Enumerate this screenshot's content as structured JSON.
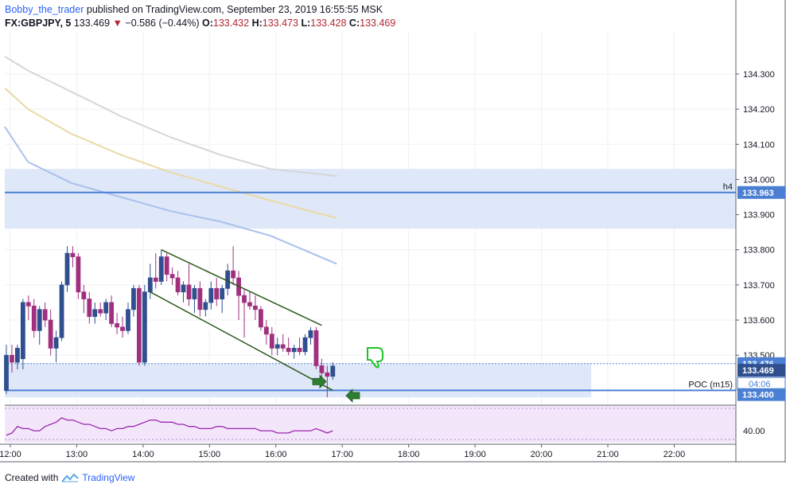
{
  "header": {
    "author": "Bobby_the_trader",
    "published": "published on TradingView.com, September 23, 2019 16:55:55 MSK",
    "symbol": "FX:GBPJPY, 5",
    "last": "133.469",
    "change": "−0.586 (−0.44%)",
    "o_label": "O:",
    "o_val": "133.432",
    "h_label": "H:",
    "h_val": "133.473",
    "l_label": "L:",
    "l_val": "133.428",
    "c_label": "C:",
    "c_val": "133.469"
  },
  "footer": {
    "created": "Created with",
    "brand": "TradingView"
  },
  "colors": {
    "bull": "#2f4f8f",
    "bear": "#a0307f",
    "zone": "#dbe6f7",
    "level": "#4a7fd4",
    "channel": "#2e5a1e",
    "arrow": "#2e7d32",
    "ma_gray": "#d6d6d6",
    "ma_yellow": "#ead9a4",
    "ma_blue": "#a9c1ec",
    "oscillator_bg": "#f3e6fa",
    "oscillator_line": "#9c27b0"
  },
  "chart_data": {
    "type": "candlestick",
    "symbol": "FX:GBPJPY",
    "timeframe": "5",
    "price_ticks": [
      "134.300",
      "134.200",
      "134.100",
      "134.000",
      "133.900",
      "133.800",
      "133.700",
      "133.600",
      "133.500"
    ],
    "time_ticks": [
      "12:00",
      "13:00",
      "14:00",
      "15:00",
      "16:00",
      "17:00",
      "18:00",
      "19:00",
      "20:00",
      "21:00",
      "22:00"
    ],
    "ylim": [
      133.36,
      134.42
    ],
    "candles": [
      {
        "t": "11:55",
        "o": 133.4,
        "h": 133.53,
        "l": 133.39,
        "c": 133.5
      },
      {
        "t": "12:00",
        "o": 133.5,
        "h": 133.53,
        "l": 133.45,
        "c": 133.48
      },
      {
        "t": "12:05",
        "o": 133.48,
        "h": 133.53,
        "l": 133.46,
        "c": 133.52
      },
      {
        "t": "12:10",
        "o": 133.49,
        "h": 133.66,
        "l": 133.46,
        "c": 133.65
      },
      {
        "t": "12:15",
        "o": 133.65,
        "h": 133.67,
        "l": 133.6,
        "c": 133.64
      },
      {
        "t": "12:20",
        "o": 133.64,
        "h": 133.66,
        "l": 133.55,
        "c": 133.57
      },
      {
        "t": "12:25",
        "o": 133.57,
        "h": 133.64,
        "l": 133.53,
        "c": 133.63
      },
      {
        "t": "12:30",
        "o": 133.63,
        "h": 133.65,
        "l": 133.58,
        "c": 133.6
      },
      {
        "t": "12:35",
        "o": 133.6,
        "h": 133.63,
        "l": 133.5,
        "c": 133.52
      },
      {
        "t": "12:40",
        "o": 133.52,
        "h": 133.57,
        "l": 133.48,
        "c": 133.55
      },
      {
        "t": "12:45",
        "o": 133.55,
        "h": 133.71,
        "l": 133.54,
        "c": 133.7
      },
      {
        "t": "12:50",
        "o": 133.7,
        "h": 133.81,
        "l": 133.68,
        "c": 133.79
      },
      {
        "t": "12:55",
        "o": 133.79,
        "h": 133.81,
        "l": 133.75,
        "c": 133.78
      },
      {
        "t": "13:00",
        "o": 133.78,
        "h": 133.79,
        "l": 133.66,
        "c": 133.68
      },
      {
        "t": "13:05",
        "o": 133.68,
        "h": 133.7,
        "l": 133.62,
        "c": 133.66
      },
      {
        "t": "13:10",
        "o": 133.66,
        "h": 133.68,
        "l": 133.59,
        "c": 133.61
      },
      {
        "t": "13:15",
        "o": 133.61,
        "h": 133.65,
        "l": 133.59,
        "c": 133.63
      },
      {
        "t": "13:20",
        "o": 133.63,
        "h": 133.65,
        "l": 133.61,
        "c": 133.62
      },
      {
        "t": "13:25",
        "o": 133.62,
        "h": 133.66,
        "l": 133.6,
        "c": 133.65
      },
      {
        "t": "13:30",
        "o": 133.65,
        "h": 133.67,
        "l": 133.58,
        "c": 133.59
      },
      {
        "t": "13:35",
        "o": 133.59,
        "h": 133.62,
        "l": 133.56,
        "c": 133.58
      },
      {
        "t": "13:40",
        "o": 133.58,
        "h": 133.61,
        "l": 133.55,
        "c": 133.57
      },
      {
        "t": "13:45",
        "o": 133.57,
        "h": 133.65,
        "l": 133.56,
        "c": 133.63
      },
      {
        "t": "13:50",
        "o": 133.63,
        "h": 133.7,
        "l": 133.61,
        "c": 133.69
      },
      {
        "t": "13:55",
        "o": 133.69,
        "h": 133.7,
        "l": 133.47,
        "c": 133.48
      },
      {
        "t": "14:00",
        "o": 133.48,
        "h": 133.7,
        "l": 133.47,
        "c": 133.68
      },
      {
        "t": "14:05",
        "o": 133.68,
        "h": 133.76,
        "l": 133.66,
        "c": 133.72
      },
      {
        "t": "14:10",
        "o": 133.72,
        "h": 133.79,
        "l": 133.69,
        "c": 133.71
      },
      {
        "t": "14:15",
        "o": 133.71,
        "h": 133.8,
        "l": 133.7,
        "c": 133.78
      },
      {
        "t": "14:20",
        "o": 133.78,
        "h": 133.79,
        "l": 133.71,
        "c": 133.73
      },
      {
        "t": "14:25",
        "o": 133.73,
        "h": 133.75,
        "l": 133.7,
        "c": 133.72
      },
      {
        "t": "14:30",
        "o": 133.72,
        "h": 133.74,
        "l": 133.67,
        "c": 133.68
      },
      {
        "t": "14:35",
        "o": 133.68,
        "h": 133.71,
        "l": 133.65,
        "c": 133.7
      },
      {
        "t": "14:40",
        "o": 133.7,
        "h": 133.76,
        "l": 133.64,
        "c": 133.66
      },
      {
        "t": "14:45",
        "o": 133.66,
        "h": 133.7,
        "l": 133.62,
        "c": 133.69
      },
      {
        "t": "14:50",
        "o": 133.69,
        "h": 133.71,
        "l": 133.61,
        "c": 133.63
      },
      {
        "t": "14:55",
        "o": 133.63,
        "h": 133.66,
        "l": 133.61,
        "c": 133.65
      },
      {
        "t": "15:00",
        "o": 133.65,
        "h": 133.71,
        "l": 133.63,
        "c": 133.69
      },
      {
        "t": "15:05",
        "o": 133.69,
        "h": 133.72,
        "l": 133.64,
        "c": 133.66
      },
      {
        "t": "15:10",
        "o": 133.66,
        "h": 133.7,
        "l": 133.62,
        "c": 133.69
      },
      {
        "t": "15:15",
        "o": 133.69,
        "h": 133.76,
        "l": 133.67,
        "c": 133.74
      },
      {
        "t": "15:20",
        "o": 133.74,
        "h": 133.81,
        "l": 133.7,
        "c": 133.72
      },
      {
        "t": "15:25",
        "o": 133.72,
        "h": 133.74,
        "l": 133.6,
        "c": 133.67
      },
      {
        "t": "15:30",
        "o": 133.67,
        "h": 133.69,
        "l": 133.55,
        "c": 133.65
      },
      {
        "t": "15:35",
        "o": 133.65,
        "h": 133.68,
        "l": 133.63,
        "c": 133.64
      },
      {
        "t": "15:40",
        "o": 133.64,
        "h": 133.67,
        "l": 133.6,
        "c": 133.63
      },
      {
        "t": "15:45",
        "o": 133.63,
        "h": 133.64,
        "l": 133.57,
        "c": 133.58
      },
      {
        "t": "15:50",
        "o": 133.58,
        "h": 133.6,
        "l": 133.53,
        "c": 133.56
      },
      {
        "t": "15:55",
        "o": 133.56,
        "h": 133.58,
        "l": 133.5,
        "c": 133.52
      },
      {
        "t": "16:00",
        "o": 133.52,
        "h": 133.55,
        "l": 133.5,
        "c": 133.53
      },
      {
        "t": "16:05",
        "o": 133.53,
        "h": 133.56,
        "l": 133.51,
        "c": 133.52
      },
      {
        "t": "16:10",
        "o": 133.52,
        "h": 133.55,
        "l": 133.5,
        "c": 133.51
      },
      {
        "t": "16:15",
        "o": 133.51,
        "h": 133.53,
        "l": 133.49,
        "c": 133.52
      },
      {
        "t": "16:20",
        "o": 133.52,
        "h": 133.55,
        "l": 133.5,
        "c": 133.51
      },
      {
        "t": "16:25",
        "o": 133.51,
        "h": 133.56,
        "l": 133.5,
        "c": 133.55
      },
      {
        "t": "16:30",
        "o": 133.55,
        "h": 133.58,
        "l": 133.53,
        "c": 133.57
      },
      {
        "t": "16:35",
        "o": 133.57,
        "h": 133.58,
        "l": 133.46,
        "c": 133.47
      },
      {
        "t": "16:40",
        "o": 133.47,
        "h": 133.49,
        "l": 133.43,
        "c": 133.45
      },
      {
        "t": "16:45",
        "o": 133.45,
        "h": 133.47,
        "l": 133.38,
        "c": 133.44
      },
      {
        "t": "16:50",
        "o": 133.44,
        "h": 133.48,
        "l": 133.43,
        "c": 133.469
      }
    ],
    "moving_averages": [
      {
        "color": "gray",
        "points": [
          [
            0,
            134.35
          ],
          [
            0.07,
            134.31
          ],
          [
            0.2,
            134.25
          ],
          [
            0.35,
            134.18
          ],
          [
            0.5,
            134.12
          ],
          [
            0.65,
            134.07
          ],
          [
            0.8,
            134.03
          ],
          [
            1,
            134.01
          ]
        ]
      },
      {
        "color": "yellow",
        "points": [
          [
            0,
            134.26
          ],
          [
            0.07,
            134.2
          ],
          [
            0.2,
            134.13
          ],
          [
            0.35,
            134.07
          ],
          [
            0.5,
            134.02
          ],
          [
            0.65,
            133.98
          ],
          [
            0.8,
            133.94
          ],
          [
            1,
            133.89
          ]
        ]
      },
      {
        "color": "blue",
        "points": [
          [
            0,
            134.15
          ],
          [
            0.07,
            134.05
          ],
          [
            0.2,
            133.99
          ],
          [
            0.35,
            133.95
          ],
          [
            0.5,
            133.91
          ],
          [
            0.65,
            133.88
          ],
          [
            0.8,
            133.84
          ],
          [
            1,
            133.76
          ]
        ]
      }
    ],
    "ma_span": [
      "11:55",
      "16:55"
    ],
    "zones": [
      {
        "top": 134.03,
        "bottom": 133.86,
        "until": "end"
      },
      {
        "top": 133.476,
        "bottom": 133.38,
        "until": "20:45"
      }
    ],
    "levels": [
      {
        "price": 133.963,
        "label": "h4",
        "axis_label": "133.963"
      },
      {
        "price": 133.4,
        "label": "POC (m15)",
        "axis_label": "133.400"
      }
    ],
    "dotted_line": 133.476,
    "channel": {
      "upper": [
        [
          "14:15",
          133.8
        ],
        [
          "16:40",
          133.585
        ]
      ],
      "lower": [
        [
          "14:05",
          133.68
        ],
        [
          "16:50",
          133.4
        ]
      ]
    },
    "axis_labels": [
      {
        "price": 133.476,
        "text": "133.476"
      },
      {
        "price": 133.469,
        "text": "133.469"
      }
    ],
    "countdown": "04:06",
    "oscillator": {
      "tick": "40.00",
      "values": [
        38,
        39,
        42,
        41,
        41,
        40,
        40,
        42,
        43,
        44,
        46,
        45,
        45,
        44,
        43,
        43,
        42,
        41,
        41,
        40,
        41,
        41,
        42,
        42,
        43,
        44,
        45,
        45,
        44,
        44,
        44,
        43,
        43,
        42,
        42,
        41,
        41,
        41,
        42,
        42,
        41,
        41,
        41,
        41,
        41,
        41,
        40,
        40,
        40,
        39,
        39,
        39,
        40,
        40,
        40,
        40,
        41,
        40,
        39,
        40
      ]
    }
  }
}
